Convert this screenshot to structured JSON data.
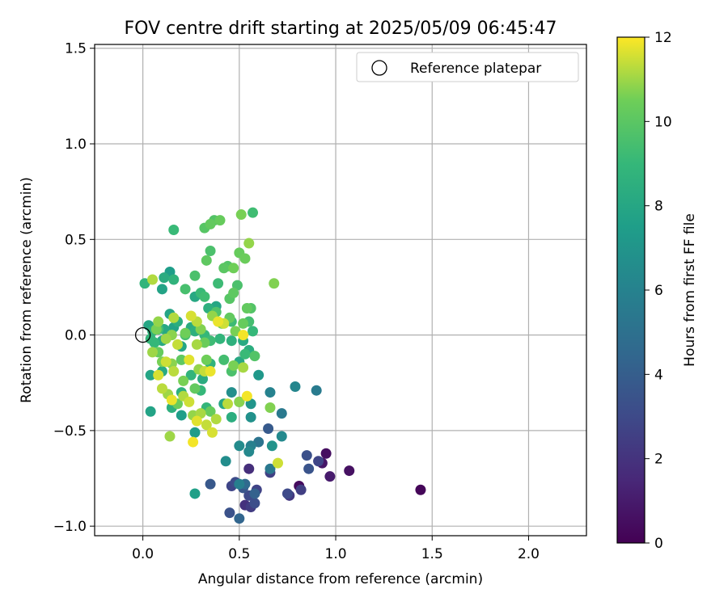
{
  "chart_data": {
    "type": "scatter",
    "title": "FOV centre drift starting at 2025/05/09 06:45:47",
    "xlabel": "Angular distance from reference (arcmin)",
    "ylabel": "Rotation from reference (arcmin)",
    "xlim": [
      -0.25,
      2.3
    ],
    "ylim": [
      -1.05,
      1.52
    ],
    "xticks": [
      0.0,
      0.5,
      1.0,
      1.5,
      2.0
    ],
    "xtick_labels": [
      "0.0",
      "0.5",
      "1.0",
      "1.5",
      "2.0"
    ],
    "yticks": [
      -1.0,
      -0.5,
      0.0,
      0.5,
      1.0,
      1.5
    ],
    "ytick_labels": [
      "−1.0",
      "−0.5",
      "0.0",
      "0.5",
      "1.0",
      "1.5"
    ],
    "grid": true,
    "legend": {
      "position": "top-right",
      "entries": [
        "Reference platepar"
      ]
    },
    "reference_point": {
      "x": 0.0,
      "y": 0.0,
      "label": "Reference platepar"
    },
    "colorbar": {
      "label": "Hours from first FF file",
      "range": [
        0,
        12
      ],
      "ticks": [
        0,
        2,
        4,
        6,
        8,
        10,
        12
      ],
      "tick_labels": [
        "0",
        "2",
        "4",
        "6",
        "8",
        "10",
        "12"
      ],
      "colormap": "viridis"
    },
    "points": [
      {
        "x": 1.44,
        "y": -0.81,
        "h": 0.2
      },
      {
        "x": 0.95,
        "y": -0.62,
        "h": 0.5
      },
      {
        "x": 1.07,
        "y": -0.71,
        "h": 0.6
      },
      {
        "x": 0.97,
        "y": -0.74,
        "h": 1.0
      },
      {
        "x": 0.93,
        "y": -0.67,
        "h": 0.8
      },
      {
        "x": 0.81,
        "y": -0.79,
        "h": 0.4
      },
      {
        "x": 0.91,
        "y": -0.66,
        "h": 2.8
      },
      {
        "x": 0.82,
        "y": -0.81,
        "h": 2.5
      },
      {
        "x": 0.85,
        "y": -0.63,
        "h": 3.3
      },
      {
        "x": 0.86,
        "y": -0.7,
        "h": 3.5
      },
      {
        "x": 0.75,
        "y": -0.83,
        "h": 3.0
      },
      {
        "x": 0.76,
        "y": -0.84,
        "h": 2.2
      },
      {
        "x": 0.66,
        "y": -0.72,
        "h": 2.6
      },
      {
        "x": 0.65,
        "y": -0.49,
        "h": 3.8
      },
      {
        "x": 0.55,
        "y": -0.7,
        "h": 1.8
      },
      {
        "x": 0.53,
        "y": -0.89,
        "h": 1.9
      },
      {
        "x": 0.56,
        "y": -0.9,
        "h": 2.4
      },
      {
        "x": 0.58,
        "y": -0.88,
        "h": 3.2
      },
      {
        "x": 0.55,
        "y": -0.84,
        "h": 3.0
      },
      {
        "x": 0.59,
        "y": -0.81,
        "h": 2.7
      },
      {
        "x": 0.58,
        "y": -0.83,
        "h": 4.2
      },
      {
        "x": 0.52,
        "y": -0.8,
        "h": 3.6
      },
      {
        "x": 0.46,
        "y": -0.79,
        "h": 2.8
      },
      {
        "x": 0.48,
        "y": -0.77,
        "h": 3.1
      },
      {
        "x": 0.45,
        "y": -0.93,
        "h": 3.4
      },
      {
        "x": 0.5,
        "y": -0.96,
        "h": 4.4
      },
      {
        "x": 0.35,
        "y": -0.78,
        "h": 3.7
      },
      {
        "x": 0.53,
        "y": -0.78,
        "h": 4.6
      },
      {
        "x": 0.5,
        "y": -0.78,
        "h": 5.8
      },
      {
        "x": 0.66,
        "y": -0.7,
        "h": 5.4
      },
      {
        "x": 0.6,
        "y": -0.56,
        "h": 5.2
      },
      {
        "x": 0.56,
        "y": -0.58,
        "h": 5.9
      },
      {
        "x": 0.55,
        "y": -0.61,
        "h": 6.3
      },
      {
        "x": 0.5,
        "y": -0.58,
        "h": 6.5
      },
      {
        "x": 0.43,
        "y": -0.66,
        "h": 6.6
      },
      {
        "x": 0.72,
        "y": -0.53,
        "h": 6.4
      },
      {
        "x": 0.67,
        "y": -0.58,
        "h": 6.9
      },
      {
        "x": 0.72,
        "y": -0.41,
        "h": 5.5
      },
      {
        "x": 0.79,
        "y": -0.27,
        "h": 6.2
      },
      {
        "x": 0.9,
        "y": -0.29,
        "h": 5.6
      },
      {
        "x": 0.66,
        "y": -0.3,
        "h": 6.0
      },
      {
        "x": 0.6,
        "y": -0.21,
        "h": 7.2
      },
      {
        "x": 0.56,
        "y": -0.43,
        "h": 6.8
      },
      {
        "x": 0.56,
        "y": -0.36,
        "h": 7.0
      },
      {
        "x": 0.46,
        "y": -0.3,
        "h": 6.7
      },
      {
        "x": 0.5,
        "y": -0.35,
        "h": 7.3
      },
      {
        "x": 0.27,
        "y": -0.83,
        "h": 7.6
      },
      {
        "x": 0.27,
        "y": -0.51,
        "h": 7.4
      },
      {
        "x": 0.42,
        "y": -0.36,
        "h": 8.0
      },
      {
        "x": 0.46,
        "y": -0.43,
        "h": 8.4
      },
      {
        "x": 0.04,
        "y": -0.4,
        "h": 7.8
      },
      {
        "x": 0.04,
        "y": -0.21,
        "h": 7.9
      },
      {
        "x": 0.1,
        "y": -0.19,
        "h": 8.2
      },
      {
        "x": 0.15,
        "y": -0.38,
        "h": 8.5
      },
      {
        "x": 0.2,
        "y": -0.3,
        "h": 8.6
      },
      {
        "x": 0.2,
        "y": -0.42,
        "h": 7.5
      },
      {
        "x": 0.25,
        "y": -0.21,
        "h": 8.8
      },
      {
        "x": 0.3,
        "y": -0.29,
        "h": 9.0
      },
      {
        "x": 0.31,
        "y": -0.23,
        "h": 8.3
      },
      {
        "x": 0.33,
        "y": -0.38,
        "h": 8.9
      },
      {
        "x": 0.35,
        "y": -0.15,
        "h": 8.7
      },
      {
        "x": 0.42,
        "y": -0.13,
        "h": 9.4
      },
      {
        "x": 0.46,
        "y": -0.19,
        "h": 9.6
      },
      {
        "x": 0.5,
        "y": -0.14,
        "h": 8.1
      },
      {
        "x": 0.53,
        "y": -0.1,
        "h": 9.1
      },
      {
        "x": 0.58,
        "y": -0.11,
        "h": 9.8
      },
      {
        "x": 0.55,
        "y": -0.08,
        "h": 8.4
      },
      {
        "x": 0.52,
        "y": -0.03,
        "h": 8.2
      },
      {
        "x": 0.46,
        "y": -0.03,
        "h": 8.6
      },
      {
        "x": 0.4,
        "y": -0.02,
        "h": 8.8
      },
      {
        "x": 0.35,
        "y": -0.03,
        "h": 9.2
      },
      {
        "x": 0.32,
        "y": 0.0,
        "h": 9.0
      },
      {
        "x": 0.27,
        "y": 0.02,
        "h": 8.5
      },
      {
        "x": 0.25,
        "y": 0.04,
        "h": 8.3
      },
      {
        "x": 0.22,
        "y": 0.0,
        "h": 9.5
      },
      {
        "x": 0.2,
        "y": -0.06,
        "h": 8.0
      },
      {
        "x": 0.16,
        "y": 0.04,
        "h": 7.8
      },
      {
        "x": 0.18,
        "y": 0.07,
        "h": 8.4
      },
      {
        "x": 0.14,
        "y": 0.11,
        "h": 7.9
      },
      {
        "x": 0.11,
        "y": 0.03,
        "h": 8.1
      },
      {
        "x": 0.08,
        "y": 0.03,
        "h": 9.3
      },
      {
        "x": 0.05,
        "y": 0.02,
        "h": 8.6
      },
      {
        "x": 0.06,
        "y": -0.04,
        "h": 9.0
      },
      {
        "x": 0.1,
        "y": -0.03,
        "h": 8.2
      },
      {
        "x": 0.03,
        "y": 0.05,
        "h": 8.0
      },
      {
        "x": 0.04,
        "y": -0.02,
        "h": 8.9
      },
      {
        "x": 0.01,
        "y": 0.27,
        "h": 8.8
      },
      {
        "x": 0.1,
        "y": 0.24,
        "h": 7.8
      },
      {
        "x": 0.11,
        "y": 0.3,
        "h": 8.3
      },
      {
        "x": 0.14,
        "y": 0.33,
        "h": 7.5
      },
      {
        "x": 0.16,
        "y": 0.29,
        "h": 8.7
      },
      {
        "x": 0.22,
        "y": 0.24,
        "h": 9.5
      },
      {
        "x": 0.27,
        "y": 0.31,
        "h": 9.6
      },
      {
        "x": 0.3,
        "y": 0.22,
        "h": 9.1
      },
      {
        "x": 0.32,
        "y": 0.2,
        "h": 9.3
      },
      {
        "x": 0.27,
        "y": 0.2,
        "h": 8.1
      },
      {
        "x": 0.34,
        "y": 0.14,
        "h": 8.5
      },
      {
        "x": 0.38,
        "y": 0.12,
        "h": 9.7
      },
      {
        "x": 0.38,
        "y": 0.15,
        "h": 8.0
      },
      {
        "x": 0.39,
        "y": 0.27,
        "h": 9.2
      },
      {
        "x": 0.45,
        "y": 0.19,
        "h": 9.9
      },
      {
        "x": 0.47,
        "y": 0.22,
        "h": 10.1
      },
      {
        "x": 0.49,
        "y": 0.26,
        "h": 9.6
      },
      {
        "x": 0.54,
        "y": 0.14,
        "h": 10.2
      },
      {
        "x": 0.56,
        "y": 0.14,
        "h": 9.8
      },
      {
        "x": 0.55,
        "y": 0.07,
        "h": 9.4
      },
      {
        "x": 0.57,
        "y": 0.02,
        "h": 9.0
      },
      {
        "x": 0.52,
        "y": 0.06,
        "h": 10.3
      },
      {
        "x": 0.46,
        "y": 0.07,
        "h": 9.2
      },
      {
        "x": 0.41,
        "y": 0.06,
        "h": 10.4
      },
      {
        "x": 0.42,
        "y": 0.35,
        "h": 10.0
      },
      {
        "x": 0.44,
        "y": 0.36,
        "h": 9.8
      },
      {
        "x": 0.47,
        "y": 0.35,
        "h": 10.5
      },
      {
        "x": 0.5,
        "y": 0.43,
        "h": 10.3
      },
      {
        "x": 0.53,
        "y": 0.4,
        "h": 10.4
      },
      {
        "x": 0.55,
        "y": 0.48,
        "h": 10.9
      },
      {
        "x": 0.51,
        "y": 0.63,
        "h": 10.6
      },
      {
        "x": 0.57,
        "y": 0.64,
        "h": 9.3
      },
      {
        "x": 0.35,
        "y": 0.44,
        "h": 9.6
      },
      {
        "x": 0.33,
        "y": 0.39,
        "h": 10.1
      },
      {
        "x": 0.32,
        "y": 0.56,
        "h": 9.9
      },
      {
        "x": 0.35,
        "y": 0.58,
        "h": 10.2
      },
      {
        "x": 0.37,
        "y": 0.6,
        "h": 9.8
      },
      {
        "x": 0.4,
        "y": 0.6,
        "h": 10.3
      },
      {
        "x": 0.16,
        "y": 0.55,
        "h": 9.1
      },
      {
        "x": 0.68,
        "y": 0.27,
        "h": 10.7
      },
      {
        "x": 0.07,
        "y": 0.03,
        "h": 10.6
      },
      {
        "x": 0.08,
        "y": 0.07,
        "h": 10.9
      },
      {
        "x": 0.12,
        "y": -0.02,
        "h": 11.0
      },
      {
        "x": 0.15,
        "y": 0.0,
        "h": 10.8
      },
      {
        "x": 0.16,
        "y": 0.09,
        "h": 11.2
      },
      {
        "x": 0.18,
        "y": -0.05,
        "h": 11.4
      },
      {
        "x": 0.22,
        "y": 0.01,
        "h": 10.5
      },
      {
        "x": 0.25,
        "y": 0.1,
        "h": 11.6
      },
      {
        "x": 0.28,
        "y": 0.07,
        "h": 11.3
      },
      {
        "x": 0.3,
        "y": 0.03,
        "h": 10.7
      },
      {
        "x": 0.28,
        "y": -0.05,
        "h": 11.1
      },
      {
        "x": 0.32,
        "y": -0.04,
        "h": 10.4
      },
      {
        "x": 0.36,
        "y": 0.1,
        "h": 10.9
      },
      {
        "x": 0.39,
        "y": 0.07,
        "h": 11.8
      },
      {
        "x": 0.42,
        "y": 0.06,
        "h": 11.5
      },
      {
        "x": 0.45,
        "y": 0.09,
        "h": 10.2
      },
      {
        "x": 0.48,
        "y": 0.02,
        "h": 10.6
      },
      {
        "x": 0.52,
        "y": 0.0,
        "h": 11.9
      },
      {
        "x": 0.05,
        "y": 0.29,
        "h": 11.2
      },
      {
        "x": 0.05,
        "y": -0.09,
        "h": 11.0
      },
      {
        "x": 0.08,
        "y": -0.09,
        "h": 10.3
      },
      {
        "x": 0.1,
        "y": -0.14,
        "h": 10.6
      },
      {
        "x": 0.12,
        "y": -0.14,
        "h": 11.5
      },
      {
        "x": 0.15,
        "y": -0.15,
        "h": 10.8
      },
      {
        "x": 0.16,
        "y": -0.19,
        "h": 11.3
      },
      {
        "x": 0.2,
        "y": -0.13,
        "h": 10.1
      },
      {
        "x": 0.24,
        "y": -0.13,
        "h": 11.7
      },
      {
        "x": 0.29,
        "y": -0.18,
        "h": 10.9
      },
      {
        "x": 0.33,
        "y": -0.13,
        "h": 10.5
      },
      {
        "x": 0.32,
        "y": -0.19,
        "h": 11.4
      },
      {
        "x": 0.35,
        "y": -0.19,
        "h": 11.8
      },
      {
        "x": 0.47,
        "y": -0.16,
        "h": 10.6
      },
      {
        "x": 0.52,
        "y": -0.17,
        "h": 11.1
      },
      {
        "x": 0.08,
        "y": -0.21,
        "h": 11.6
      },
      {
        "x": 0.1,
        "y": -0.28,
        "h": 11.3
      },
      {
        "x": 0.13,
        "y": -0.31,
        "h": 11.0
      },
      {
        "x": 0.15,
        "y": -0.34,
        "h": 11.8
      },
      {
        "x": 0.18,
        "y": -0.36,
        "h": 10.4
      },
      {
        "x": 0.21,
        "y": -0.32,
        "h": 11.2
      },
      {
        "x": 0.24,
        "y": -0.35,
        "h": 11.5
      },
      {
        "x": 0.26,
        "y": -0.42,
        "h": 10.9
      },
      {
        "x": 0.28,
        "y": -0.45,
        "h": 11.7
      },
      {
        "x": 0.3,
        "y": -0.41,
        "h": 11.1
      },
      {
        "x": 0.33,
        "y": -0.47,
        "h": 11.4
      },
      {
        "x": 0.36,
        "y": -0.51,
        "h": 11.6
      },
      {
        "x": 0.38,
        "y": -0.44,
        "h": 11.2
      },
      {
        "x": 0.26,
        "y": -0.56,
        "h": 11.9
      },
      {
        "x": 0.14,
        "y": -0.53,
        "h": 11.0
      },
      {
        "x": 0.35,
        "y": -0.4,
        "h": 10.3
      },
      {
        "x": 0.44,
        "y": -0.36,
        "h": 11.3
      },
      {
        "x": 0.5,
        "y": -0.35,
        "h": 10.8
      },
      {
        "x": 0.54,
        "y": -0.32,
        "h": 11.9
      },
      {
        "x": 0.66,
        "y": -0.38,
        "h": 10.7
      },
      {
        "x": 0.7,
        "y": -0.67,
        "h": 11.5
      },
      {
        "x": 0.21,
        "y": -0.24,
        "h": 10.6
      },
      {
        "x": 0.27,
        "y": -0.28,
        "h": 10.2
      }
    ]
  }
}
